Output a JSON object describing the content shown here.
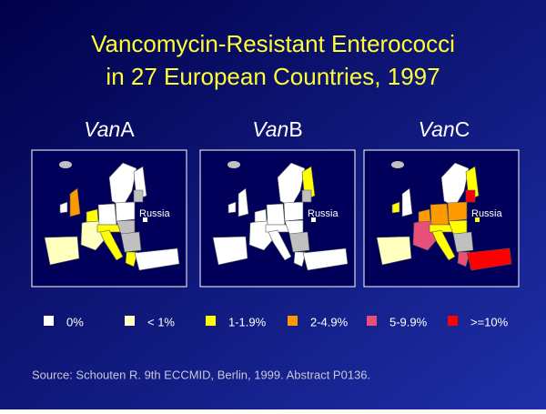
{
  "header": {
    "title_lines": [
      "Vancomycin-Resistant Enterococci",
      "in 27 European Countries, 1997"
    ]
  },
  "panels": [
    {
      "label_italic": "Van",
      "label_rest": "A",
      "place_label": "Russia"
    },
    {
      "label_italic": "Van",
      "label_rest": "B",
      "place_label": "Russia"
    },
    {
      "label_italic": "Van",
      "label_rest": "C",
      "place_label": "Russia"
    }
  ],
  "legend": [
    {
      "label": "0%",
      "color": "#ffffff"
    },
    {
      "label": "< 1%",
      "color": "#ffffc0"
    },
    {
      "label": "1-1.9%",
      "color": "#ffff00"
    },
    {
      "label": "2-4.9%",
      "color": "#ff9900"
    },
    {
      "label": "5-9.9%",
      "color": "#e8507a"
    },
    {
      "label": ">=10%",
      "color": "#ff0000"
    }
  ],
  "source": "Source: Schouten R. 9th ECCMID, Berlin, 1999. Abstract P0136."
}
